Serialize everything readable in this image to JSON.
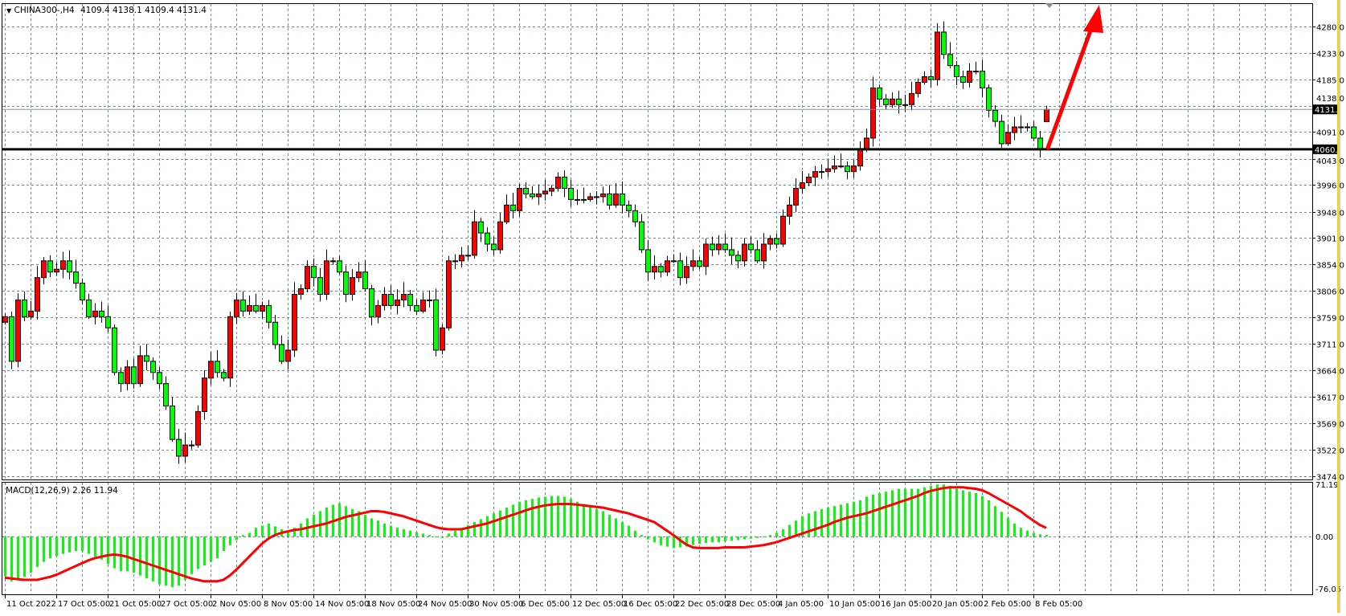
{
  "header": {
    "symbol_label": "CHINA300-,H4",
    "ohlc_label": "4109.4 4138.1 4109.4 4131.4"
  },
  "indicator": {
    "label": "MACD(12,26,9) 2.26 11.94"
  },
  "colors": {
    "bull_candle": "#ff0000",
    "bear_candle": "#00ff00",
    "macd_histogram": "#00ff00",
    "macd_signal": "#ff0000",
    "grid": "#778899",
    "support_line": "#000000",
    "arrow": "#ff0000",
    "right_edge": "#ffd700"
  },
  "chart_data": [
    {
      "type": "candlestick",
      "title": "CHINA300-,H4",
      "ylim": [
        3474,
        4280
      ],
      "price_ticks": [
        "4280.0",
        "4233.0",
        "4185.0",
        "4138.0",
        "4091.0",
        "4043.0",
        "3996.0",
        "3948.0",
        "3901.0",
        "3854.0",
        "3806.0",
        "3759.0",
        "3711.0",
        "3664.0",
        "3617.0",
        "3569.0",
        "3522.0",
        "3474.0"
      ],
      "x_tick_labels": [
        "11 Oct 2022",
        "17 Oct 05:00",
        "21 Oct 05:00",
        "27 Oct 05:00",
        "2 Nov 05:00",
        "8 Nov 05:00",
        "14 Nov 05:00",
        "18 Nov 05:00",
        "24 Nov 05:00",
        "30 Nov 05:00",
        "6 Dec 05:00",
        "12 Dec 05:00",
        "16 Dec 05:00",
        "22 Dec 05:00",
        "28 Dec 05:00",
        "4 Jan 05:00",
        "10 Jan 05:00",
        "16 Jan 05:00",
        "20 Jan 05:00",
        "2 Feb 05:00",
        "8 Feb 05:00"
      ],
      "grid": true,
      "close": [
        3760,
        3680,
        3790,
        3760,
        3770,
        3830,
        3860,
        3840,
        3845,
        3860,
        3840,
        3820,
        3790,
        3760,
        3770,
        3760,
        3740,
        3660,
        3640,
        3670,
        3640,
        3690,
        3680,
        3660,
        3640,
        3600,
        3540,
        3510,
        3530,
        3530,
        3590,
        3650,
        3680,
        3660,
        3650,
        3760,
        3790,
        3770,
        3780,
        3770,
        3780,
        3750,
        3710,
        3680,
        3700,
        3800,
        3810,
        3850,
        3830,
        3800,
        3860,
        3860,
        3840,
        3800,
        3830,
        3840,
        3810,
        3760,
        3780,
        3800,
        3780,
        3790,
        3800,
        3780,
        3770,
        3790,
        3790,
        3700,
        3740,
        3860,
        3860,
        3870,
        3870,
        3930,
        3910,
        3890,
        3880,
        3930,
        3960,
        3950,
        3990,
        3980,
        3975,
        3980,
        3985,
        3990,
        4010,
        3990,
        3970,
        3970,
        3970,
        3975,
        3975,
        3980,
        3960,
        3980,
        3960,
        3950,
        3930,
        3880,
        3840,
        3850,
        3840,
        3860,
        3860,
        3830,
        3850,
        3860,
        3850,
        3890,
        3880,
        3890,
        3880,
        3870,
        3860,
        3890,
        3880,
        3860,
        3890,
        3900,
        3890,
        3940,
        3960,
        3990,
        4000,
        4010,
        4020,
        4020,
        4025,
        4030,
        4030,
        4020,
        4030,
        4060,
        4080,
        4170,
        4150,
        4140,
        4150,
        4140,
        4140,
        4160,
        4180,
        4190,
        4185,
        4270,
        4230,
        4210,
        4190,
        4180,
        4200,
        4200,
        4170,
        4130,
        4110,
        4070,
        4090,
        4100,
        4100,
        4100,
        4080,
        4060,
        4131.4
      ],
      "last_candle": {
        "open": 4109.4,
        "high": 4138.1,
        "low": 4109.4,
        "close": 4131.4
      },
      "horizontal_lines": [
        {
          "price": 4131.4,
          "label": "4131.4",
          "style": "thin-gray"
        },
        {
          "price": 4060.0,
          "label": "4060.0",
          "style": "thick-black"
        }
      ],
      "annotation": "up-arrow"
    },
    {
      "type": "bar+line",
      "title": "MACD(12,26,9) 2.26 11.94",
      "ylim": [
        -76.05,
        71.19
      ],
      "y_ticks": [
        "71.19",
        "0.00",
        "-76.05"
      ],
      "histogram": [
        -55,
        -62,
        -60,
        -56,
        -50,
        -42,
        -35,
        -30,
        -27,
        -24,
        -22,
        -20,
        -20,
        -24,
        -28,
        -32,
        -38,
        -44,
        -48,
        -48,
        -50,
        -54,
        -58,
        -62,
        -66,
        -68,
        -70,
        -68,
        -60,
        -52,
        -45,
        -40,
        -35,
        -30,
        -20,
        -12,
        -5,
        2,
        5,
        12,
        15,
        18,
        14,
        10,
        8,
        12,
        18,
        25,
        30,
        35,
        40,
        44,
        46,
        42,
        38,
        35,
        30,
        25,
        22,
        18,
        15,
        12,
        10,
        8,
        6,
        4,
        2,
        0,
        -2,
        4,
        8,
        12,
        16,
        20,
        24,
        28,
        32,
        36,
        40,
        44,
        48,
        50,
        52,
        54,
        55,
        56,
        56,
        55,
        52,
        48,
        45,
        42,
        38,
        35,
        30,
        25,
        20,
        15,
        8,
        2,
        -4,
        -8,
        -12,
        -14,
        -16,
        -15,
        -14,
        -12,
        -10,
        -9,
        -8,
        -8,
        -7,
        -6,
        -5,
        -4,
        -3,
        -2,
        0,
        2,
        5,
        10,
        16,
        22,
        28,
        32,
        35,
        38,
        40,
        42,
        44,
        46,
        48,
        50,
        55,
        58,
        60,
        62,
        64,
        66,
        66,
        66,
        66,
        68,
        70,
        72,
        72,
        70,
        66,
        64,
        62,
        60,
        56,
        50,
        42,
        34,
        26,
        18,
        12,
        8,
        5,
        3,
        2.26
      ],
      "signal": [
        -57,
        -58,
        -59,
        -60,
        -60,
        -60,
        -58,
        -56,
        -53,
        -49,
        -45,
        -41,
        -37,
        -33,
        -30,
        -28,
        -26,
        -25,
        -26,
        -28,
        -31,
        -34,
        -37,
        -40,
        -43,
        -46,
        -49,
        -52,
        -55,
        -58,
        -60,
        -62,
        -62,
        -62,
        -60,
        -54,
        -46,
        -37,
        -28,
        -19,
        -10,
        -3,
        2,
        5,
        7,
        9,
        10,
        12,
        14,
        16,
        18,
        21,
        24,
        27,
        29,
        31,
        33,
        35,
        35,
        34,
        32,
        30,
        28,
        25,
        22,
        19,
        16,
        13,
        11,
        10,
        10,
        10,
        12,
        14,
        16,
        18,
        21,
        24,
        27,
        30,
        33,
        36,
        39,
        41,
        43,
        44,
        45,
        45,
        45,
        44,
        43,
        42,
        41,
        40,
        38,
        36,
        34,
        32,
        29,
        26,
        23,
        20,
        14,
        8,
        2,
        -5,
        -11,
        -15,
        -16,
        -16,
        -16,
        -16,
        -15,
        -15,
        -15,
        -15,
        -14,
        -13,
        -12,
        -10,
        -8,
        -5,
        -2,
        1,
        4,
        7,
        10,
        13,
        16,
        20,
        23,
        26,
        28,
        30,
        32,
        35,
        38,
        41,
        44,
        47,
        50,
        53,
        56,
        60,
        63,
        65,
        67,
        68,
        68,
        68,
        67,
        66,
        64,
        60,
        55,
        50,
        45,
        40,
        35,
        28,
        22,
        16,
        11.94
      ]
    }
  ]
}
